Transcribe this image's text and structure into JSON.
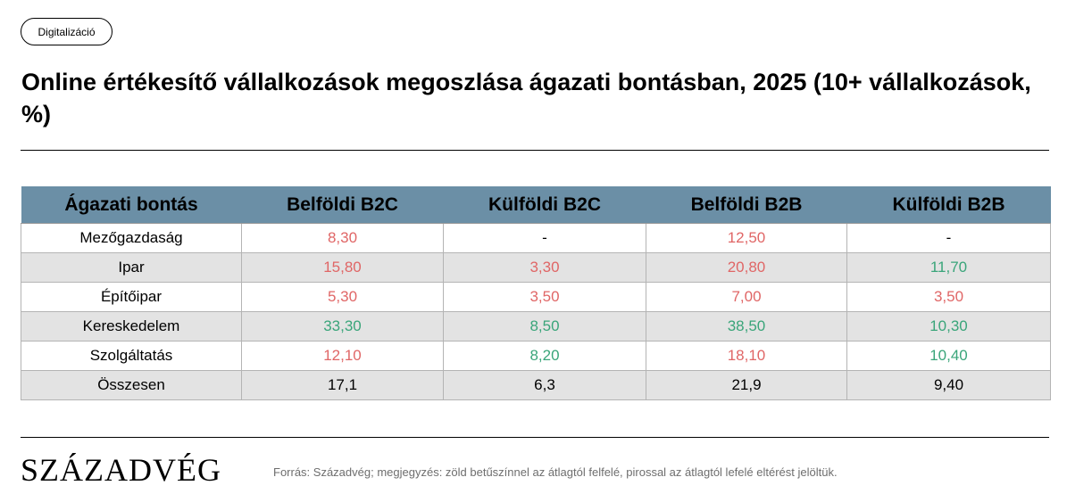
{
  "tag": {
    "label": "Digitalizáció"
  },
  "title": "Online értékesítő vállalkozások megoszlása ágazati bontásban, 2025 (10+ vállalkozások, %)",
  "colors": {
    "header_bg": "#6b8fa6",
    "above_avg": "#3aa57a",
    "below_avg": "#e06666",
    "row_alt": "#e3e3e3"
  },
  "table": {
    "headers": [
      "Ágazati bontás",
      "Belföldi B2C",
      "Külföldi B2C",
      "Belföldi B2B",
      "Külföldi B2B"
    ],
    "rows": [
      {
        "sector": "Mezőgazdaság",
        "cells": [
          {
            "v": "8,30",
            "c": "red"
          },
          {
            "v": "-",
            "c": "neutral"
          },
          {
            "v": "12,50",
            "c": "red"
          },
          {
            "v": "-",
            "c": "neutral"
          }
        ]
      },
      {
        "sector": "Ipar",
        "cells": [
          {
            "v": "15,80",
            "c": "red"
          },
          {
            "v": "3,30",
            "c": "red"
          },
          {
            "v": "20,80",
            "c": "red"
          },
          {
            "v": "11,70",
            "c": "green"
          }
        ]
      },
      {
        "sector": "Építőipar",
        "cells": [
          {
            "v": "5,30",
            "c": "red"
          },
          {
            "v": "3,50",
            "c": "red"
          },
          {
            "v": "7,00",
            "c": "red"
          },
          {
            "v": "3,50",
            "c": "red"
          }
        ]
      },
      {
        "sector": "Kereskedelem",
        "cells": [
          {
            "v": "33,30",
            "c": "green"
          },
          {
            "v": "8,50",
            "c": "green"
          },
          {
            "v": "38,50",
            "c": "green"
          },
          {
            "v": "10,30",
            "c": "green"
          }
        ]
      },
      {
        "sector": "Szolgáltatás",
        "cells": [
          {
            "v": "12,10",
            "c": "red"
          },
          {
            "v": "8,20",
            "c": "green"
          },
          {
            "v": "18,10",
            "c": "red"
          },
          {
            "v": "10,40",
            "c": "green"
          }
        ]
      },
      {
        "sector": "Összesen",
        "cells": [
          {
            "v": "17,1",
            "c": "neutral"
          },
          {
            "v": "6,3",
            "c": "neutral"
          },
          {
            "v": "21,9",
            "c": "neutral"
          },
          {
            "v": "9,40",
            "c": "neutral"
          }
        ]
      }
    ]
  },
  "footer": {
    "logo": "SZÁZADVÉG",
    "source": "Forrás: Századvég; megjegyzés: zöld betűszínnel az átlagtól felfelé, pirossal az átlagtól lefelé eltérést jelöltük."
  }
}
